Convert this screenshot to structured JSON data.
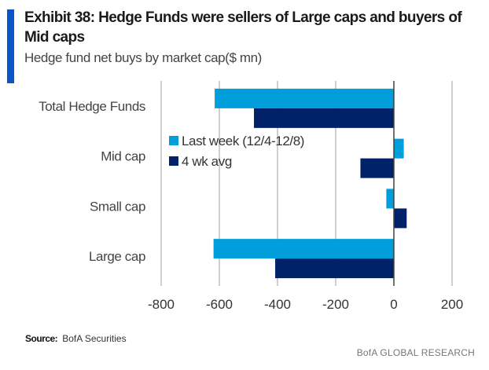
{
  "header": {
    "title": "Exhibit 38: Hedge Funds were sellers of Large caps and buyers of Mid caps",
    "subtitle": "Hedge fund net buys by market cap($ mn)"
  },
  "footer": {
    "source_label": "Source:",
    "source_text": "BofA Securities",
    "brand": "BofA GLOBAL RESEARCH"
  },
  "colors": {
    "accent": "#0a55c9",
    "last_week": "#009fdb",
    "avg": "#012169"
  },
  "chart_data": {
    "type": "bar",
    "orientation": "horizontal",
    "title": "Exhibit 38: Hedge Funds were sellers of Large caps and buyers of Mid caps",
    "subtitle": "Hedge fund net buys by market cap($ mn)",
    "categories": [
      "Total Hedge Funds",
      "Mid cap",
      "Small cap",
      "Large cap"
    ],
    "series": [
      {
        "name": "Last week (12/4-12/8)",
        "color": "#009fdb",
        "values": [
          -616,
          34,
          -26,
          -620
        ]
      },
      {
        "name": "4 wk avg",
        "color": "#012169",
        "values": [
          -481,
          -115,
          44,
          -408
        ]
      }
    ],
    "xlim": [
      -800,
      200
    ],
    "xticks": [
      -800,
      -600,
      -400,
      -200,
      0,
      200
    ],
    "xtick_labels": [
      "-800",
      "-600",
      "-400",
      "-200",
      "0",
      "200"
    ],
    "xlabel": "",
    "ylabel": "",
    "grid": "vertical",
    "legend": "center-left"
  }
}
